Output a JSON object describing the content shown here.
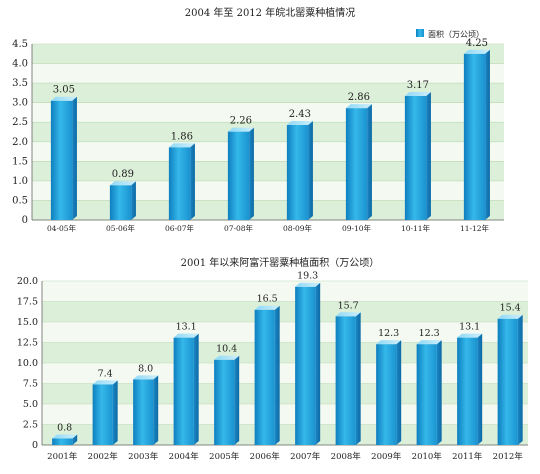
{
  "chart_data": [
    {
      "type": "bar",
      "title": "2004 年至 2012 年皖北罂粟种植情况",
      "legend": {
        "label": "面积（万公顷）",
        "placement": "top-right"
      },
      "categories": [
        "04-05年",
        "05-06年",
        "06-07年",
        "07-08年",
        "08-09年",
        "09-10年",
        "10-11年",
        "11-12年"
      ],
      "values": [
        3.05,
        0.89,
        1.86,
        2.26,
        2.43,
        2.86,
        3.17,
        4.25
      ],
      "value_labels": [
        "3.05",
        "0.89",
        "1.86",
        "2.26",
        "2.43",
        "2.86",
        "3.17",
        "4.25"
      ],
      "yticks": [
        "0",
        "0.5",
        "1.0",
        "1.5",
        "2.0",
        "2.5",
        "3.0",
        "3.5",
        "4.0",
        "4.5"
      ],
      "ylim": [
        0,
        4.5
      ],
      "grid": true,
      "bar_color": "#2fb3e6",
      "band_color": "#dcefd8"
    },
    {
      "type": "bar",
      "title": "2001 年以来阿富汗罂粟种植面积（万公顷）",
      "categories": [
        "2001年",
        "2002年",
        "2003年",
        "2004年",
        "2005年",
        "2006年",
        "2007年",
        "2008年",
        "2009年",
        "2010年",
        "2011年",
        "2012年"
      ],
      "values": [
        0.8,
        7.4,
        8.0,
        13.1,
        10.4,
        16.5,
        19.3,
        15.7,
        12.3,
        12.3,
        13.1,
        15.4
      ],
      "value_labels": [
        "0.8",
        "7.4",
        "8.0",
        "13.1",
        "10.4",
        "16.5",
        "19.3",
        "15.7",
        "12.3",
        "12.3",
        "13.1",
        "15.4"
      ],
      "yticks": [
        "0",
        "2.5",
        "5.0",
        "7.5",
        "10.0",
        "12.5",
        "15.0",
        "17.5",
        "20.0"
      ],
      "ylim": [
        0,
        20
      ],
      "grid": true,
      "bar_color": "#2fb3e6",
      "band_color": "#dcefd8"
    }
  ]
}
